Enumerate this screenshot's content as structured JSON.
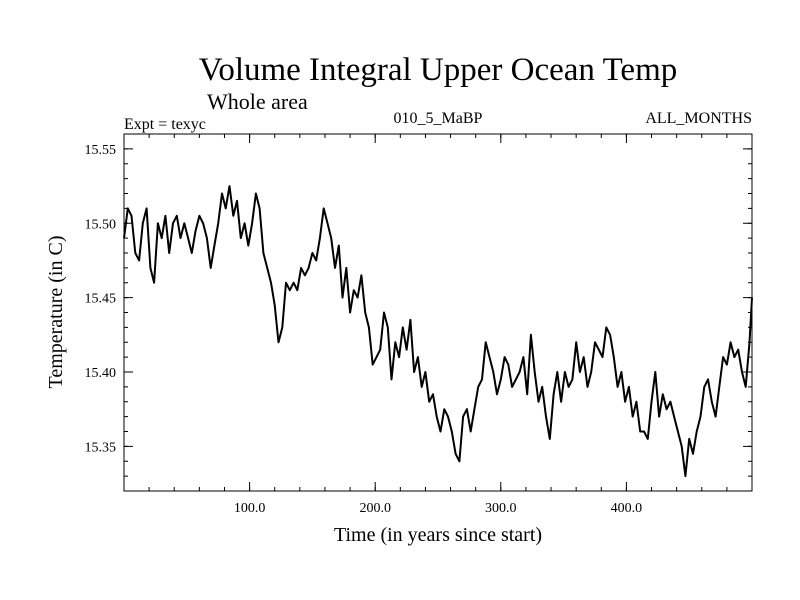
{
  "chart_data": {
    "type": "line",
    "title": "Volume Integral Upper Ocean Temp",
    "subtitle": "Whole area",
    "experiment": "Expt = texyc",
    "run": "010_5_MaBP",
    "period": "ALL_MONTHS",
    "xlabel": "Time (in years since start)",
    "ylabel": "Temperature (in C)",
    "xlim": [
      0,
      500
    ],
    "ylim": [
      15.32,
      15.56
    ],
    "xticks": [
      100,
      200,
      300,
      400
    ],
    "xtick_labels": [
      "100.0",
      "200.0",
      "300.0",
      "400.0"
    ],
    "yticks": [
      15.35,
      15.4,
      15.45,
      15.5,
      15.55
    ],
    "ytick_labels": [
      "15.35",
      "15.40",
      "15.45",
      "15.50",
      "15.55"
    ],
    "grid": false,
    "series": [
      {
        "color": "#000000",
        "x": [
          0,
          3,
          6,
          9,
          12,
          15,
          18,
          21,
          24,
          27,
          30,
          33,
          36,
          39,
          42,
          45,
          48,
          51,
          54,
          57,
          60,
          63,
          66,
          69,
          72,
          75,
          78,
          81,
          84,
          87,
          90,
          93,
          96,
          99,
          102,
          105,
          108,
          111,
          114,
          117,
          120,
          123,
          126,
          129,
          132,
          135,
          138,
          141,
          144,
          147,
          150,
          153,
          156,
          159,
          162,
          165,
          168,
          171,
          174,
          177,
          180,
          183,
          186,
          189,
          192,
          195,
          198,
          201,
          204,
          207,
          210,
          213,
          216,
          219,
          222,
          225,
          228,
          231,
          234,
          237,
          240,
          243,
          246,
          249,
          252,
          255,
          258,
          261,
          264,
          267,
          270,
          273,
          276,
          279,
          282,
          285,
          288,
          291,
          294,
          297,
          300,
          303,
          306,
          309,
          312,
          315,
          318,
          321,
          324,
          327,
          330,
          333,
          336,
          339,
          342,
          345,
          348,
          351,
          354,
          357,
          360,
          363,
          366,
          369,
          372,
          375,
          378,
          381,
          384,
          387,
          390,
          393,
          396,
          399,
          402,
          405,
          408,
          411,
          414,
          417,
          420,
          423,
          426,
          429,
          432,
          435,
          438,
          441,
          444,
          447,
          450,
          453,
          456,
          459,
          462,
          465,
          468,
          471,
          474,
          477,
          480,
          483,
          486,
          489,
          492,
          495,
          498,
          500
        ],
        "y": [
          15.49,
          15.51,
          15.505,
          15.48,
          15.475,
          15.5,
          15.51,
          15.47,
          15.46,
          15.5,
          15.49,
          15.505,
          15.48,
          15.5,
          15.505,
          15.49,
          15.5,
          15.49,
          15.48,
          15.495,
          15.505,
          15.5,
          15.49,
          15.47,
          15.485,
          15.5,
          15.52,
          15.51,
          15.525,
          15.505,
          15.515,
          15.49,
          15.5,
          15.485,
          15.5,
          15.52,
          15.51,
          15.48,
          15.47,
          15.46,
          15.445,
          15.42,
          15.43,
          15.46,
          15.455,
          15.46,
          15.455,
          15.47,
          15.465,
          15.47,
          15.48,
          15.475,
          15.49,
          15.51,
          15.5,
          15.49,
          15.47,
          15.485,
          15.45,
          15.47,
          15.44,
          15.455,
          15.45,
          15.465,
          15.44,
          15.43,
          15.405,
          15.41,
          15.415,
          15.44,
          15.43,
          15.395,
          15.42,
          15.41,
          15.43,
          15.415,
          15.435,
          15.4,
          15.41,
          15.39,
          15.4,
          15.38,
          15.385,
          15.37,
          15.36,
          15.375,
          15.37,
          15.36,
          15.345,
          15.34,
          15.37,
          15.375,
          15.36,
          15.375,
          15.39,
          15.395,
          15.42,
          15.41,
          15.4,
          15.385,
          15.395,
          15.41,
          15.405,
          15.39,
          15.395,
          15.4,
          15.41,
          15.385,
          15.425,
          15.4,
          15.38,
          15.39,
          15.37,
          15.355,
          15.385,
          15.4,
          15.38,
          15.4,
          15.39,
          15.395,
          15.42,
          15.4,
          15.41,
          15.39,
          15.4,
          15.42,
          15.415,
          15.41,
          15.43,
          15.425,
          15.41,
          15.39,
          15.4,
          15.38,
          15.39,
          15.37,
          15.38,
          15.36,
          15.36,
          15.355,
          15.38,
          15.4,
          15.37,
          15.385,
          15.375,
          15.38,
          15.37,
          15.36,
          15.35,
          15.33,
          15.355,
          15.345,
          15.36,
          15.37,
          15.39,
          15.395,
          15.38,
          15.37,
          15.39,
          15.41,
          15.405,
          15.42,
          15.41,
          15.415,
          15.4,
          15.39,
          15.42,
          15.45
        ]
      }
    ]
  }
}
